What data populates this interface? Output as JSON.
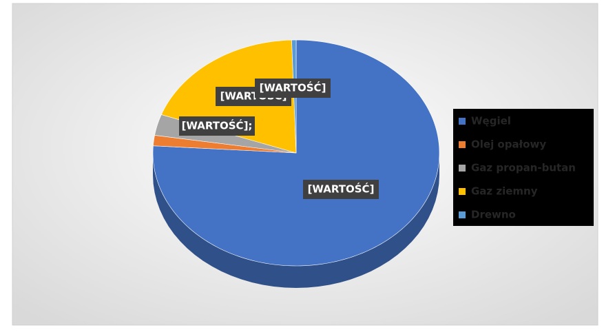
{
  "chart_data": {
    "type": "pie",
    "categories": [
      "Węgiel",
      "Olej opałowy",
      "Gaz propan-butan",
      "Gaz ziemny",
      "Drewno"
    ],
    "values": [
      76,
      1.5,
      3,
      19,
      0.5
    ],
    "value_labels": [
      "[WARTOŚĆ]",
      "[WARTOŚĆ];",
      null,
      "[WARTOŚĆ]",
      "[WARTOŚĆ]"
    ],
    "colors": [
      "#4472c4",
      "#ed7d31",
      "#a5a5a5",
      "#ffc000",
      "#5b9bd5"
    ],
    "legend": "right",
    "three_d": true
  }
}
